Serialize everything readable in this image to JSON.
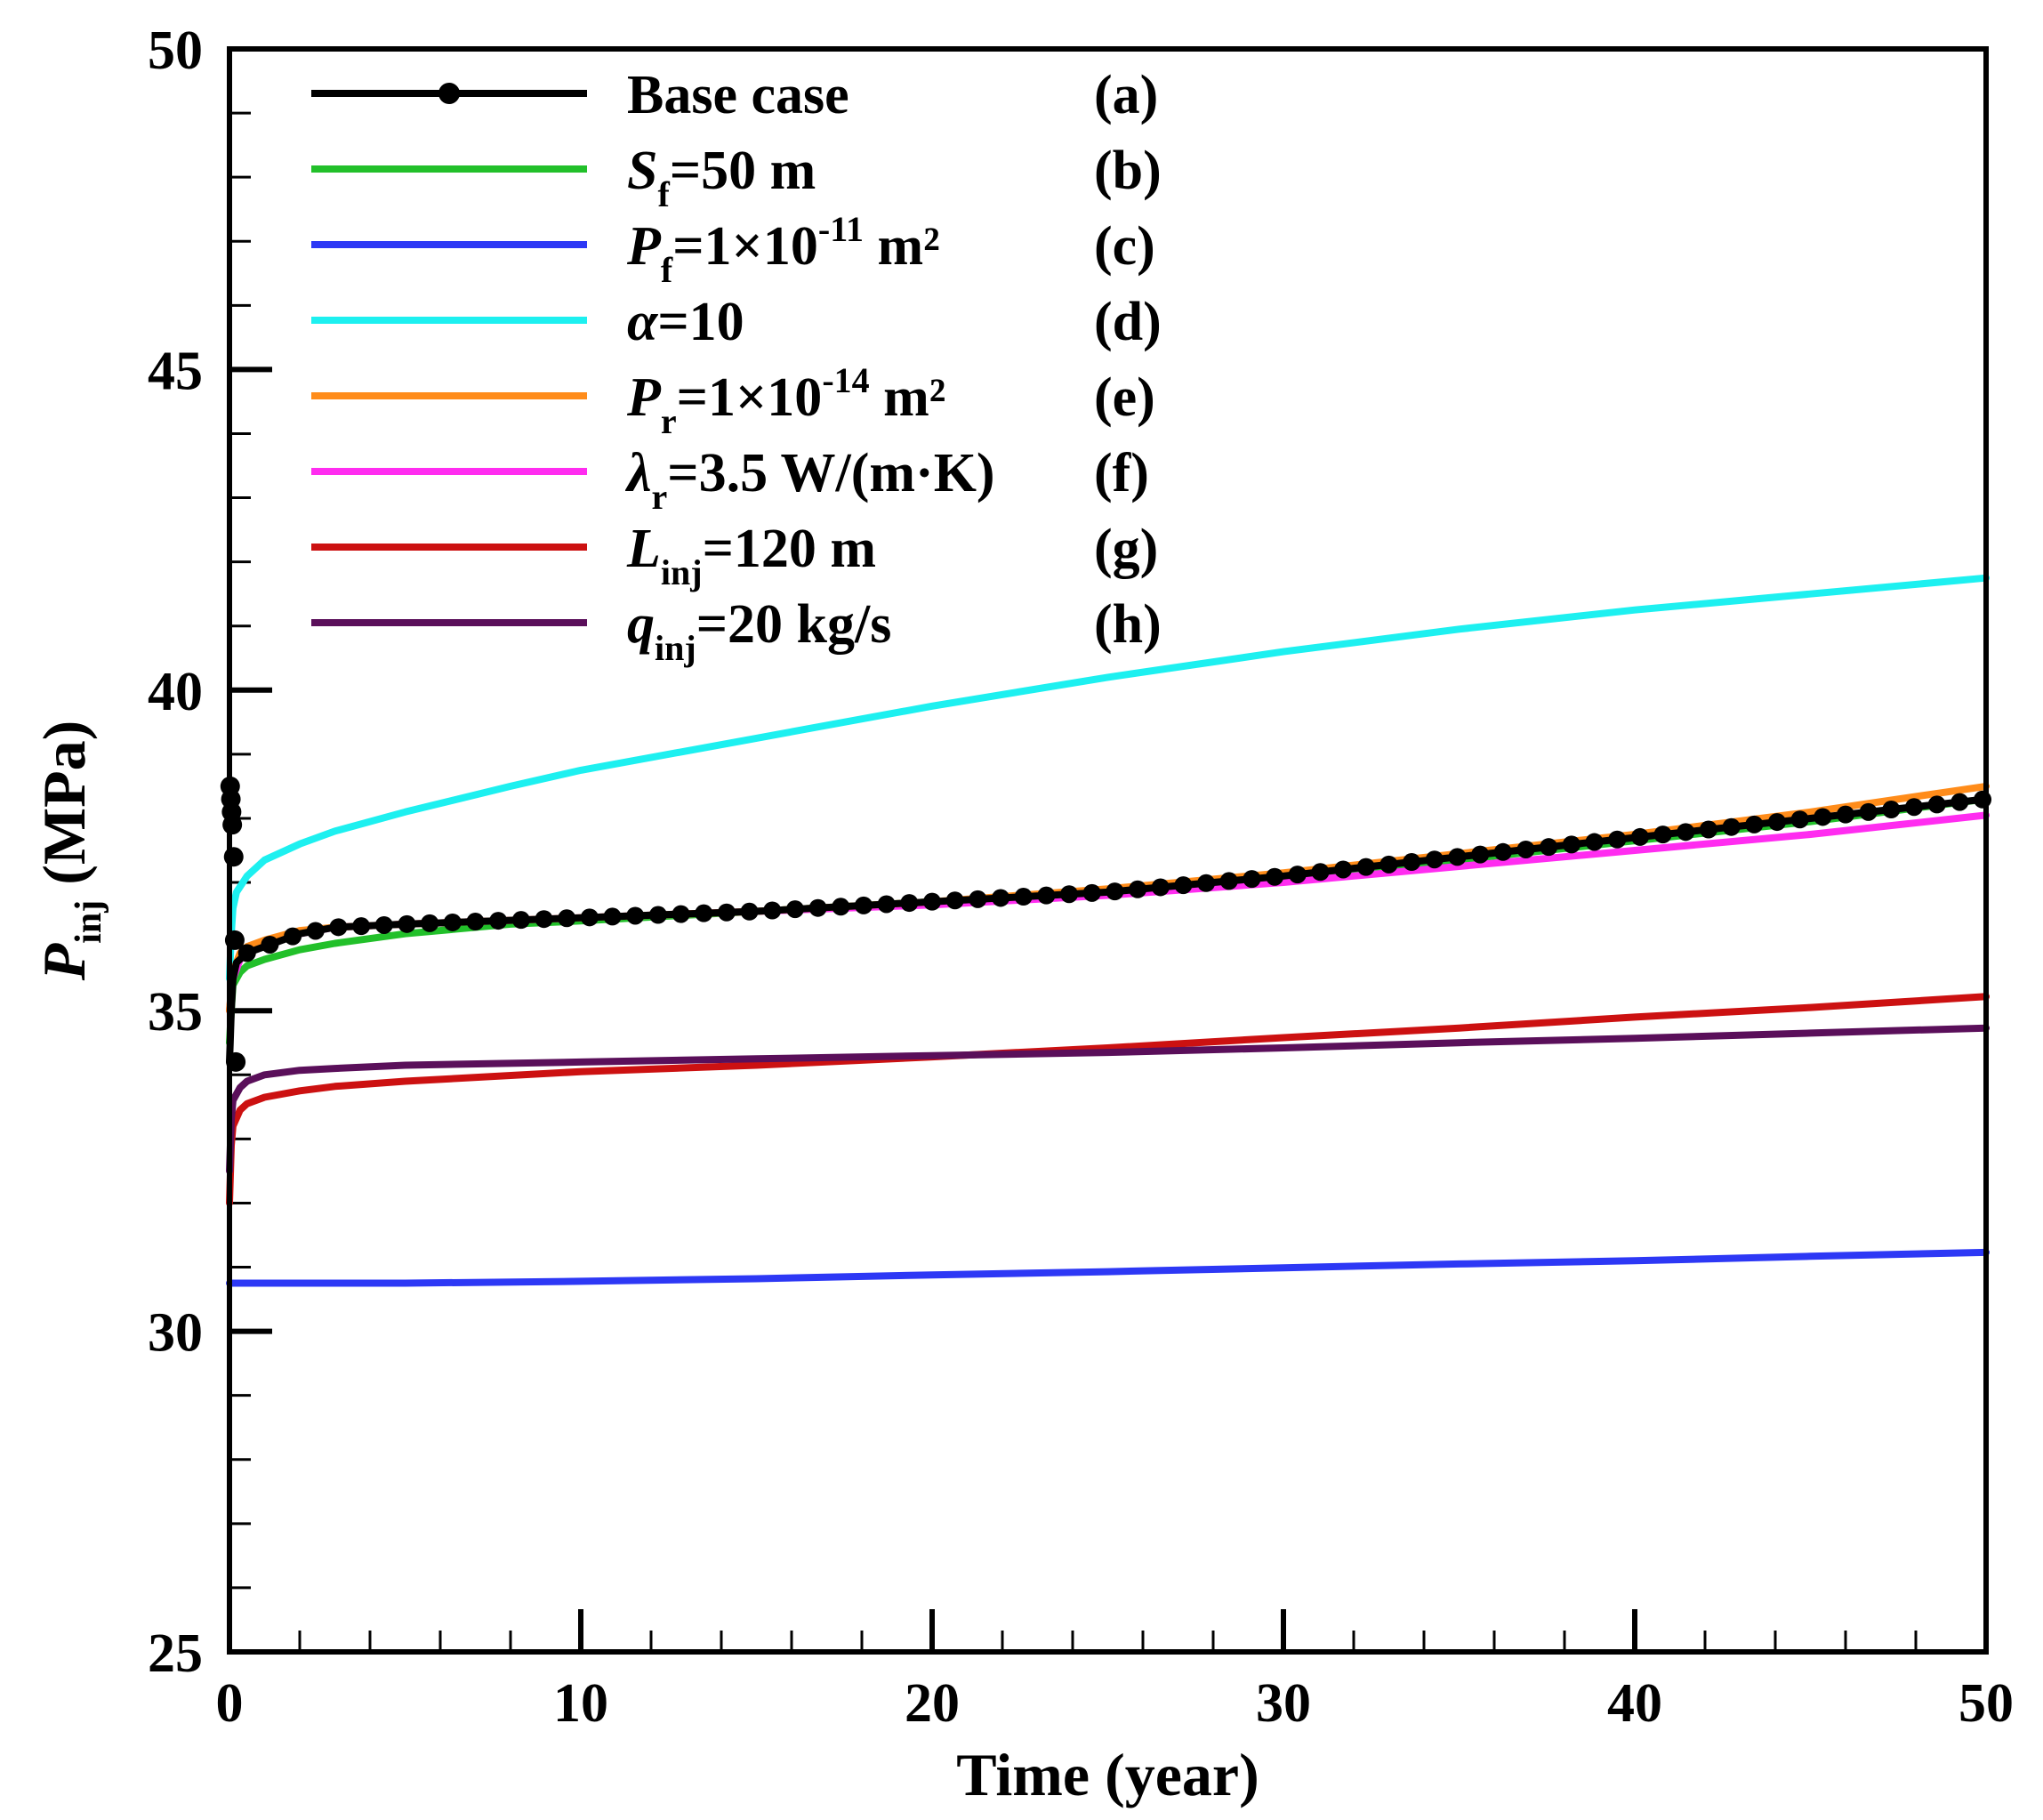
{
  "chart_data": {
    "type": "line",
    "xlabel": "Time (year)",
    "ylabel": {
      "main": "P",
      "sub": "inj",
      "rest": " (MPa)"
    },
    "xlim": [
      0,
      50
    ],
    "ylim": [
      25,
      50
    ],
    "x_ticks": [
      "0",
      "10",
      "20",
      "30",
      "40",
      "50"
    ],
    "y_ticks": [
      "25",
      "30",
      "35",
      "40",
      "45",
      "50"
    ],
    "x_minor_step": 2,
    "y_minor_step": 1,
    "series": [
      {
        "name": "Base case",
        "label": {
          "main": "Base case",
          "sub": "",
          "rest": ""
        },
        "tag": "(a)",
        "color": "#000000",
        "markers": true,
        "points": [
          [
            0,
            34.2
          ],
          [
            0.02,
            34.5
          ],
          [
            0.05,
            35.0
          ],
          [
            0.1,
            35.5
          ],
          [
            0.2,
            35.75
          ],
          [
            0.5,
            35.9
          ],
          [
            1,
            36.0
          ],
          [
            2,
            36.2
          ],
          [
            3,
            36.3
          ],
          [
            5,
            36.35
          ],
          [
            10,
            36.45
          ],
          [
            15,
            36.55
          ],
          [
            20,
            36.7
          ],
          [
            25,
            36.85
          ],
          [
            30,
            37.1
          ],
          [
            35,
            37.4
          ],
          [
            40,
            37.7
          ],
          [
            45,
            38.0
          ],
          [
            50,
            38.3
          ]
        ],
        "marker_points": [
          [
            0.02,
            38.5
          ],
          [
            0.04,
            38.3
          ],
          [
            0.06,
            38.1
          ],
          [
            0.08,
            37.9
          ],
          [
            0.12,
            37.4
          ],
          [
            0.15,
            36.1
          ],
          [
            0.18,
            34.2
          ]
        ]
      },
      {
        "name": "Sf=50 m",
        "label": {
          "main": "S",
          "sub": "f",
          "rest": "=50 m"
        },
        "tag": "(b)",
        "color": "#22c02a",
        "markers": false,
        "points": [
          [
            0,
            34.5
          ],
          [
            0.05,
            35.0
          ],
          [
            0.1,
            35.4
          ],
          [
            0.3,
            35.6
          ],
          [
            0.5,
            35.7
          ],
          [
            1,
            35.8
          ],
          [
            2,
            35.95
          ],
          [
            3,
            36.05
          ],
          [
            5,
            36.2
          ],
          [
            8,
            36.35
          ],
          [
            10,
            36.4
          ],
          [
            15,
            36.55
          ],
          [
            20,
            36.7
          ],
          [
            25,
            36.85
          ],
          [
            30,
            37.05
          ],
          [
            35,
            37.35
          ],
          [
            40,
            37.65
          ],
          [
            45,
            37.95
          ],
          [
            50,
            38.3
          ]
        ]
      },
      {
        "name": "Pf=1×10^-11 m²",
        "label": {
          "main": "P",
          "sub": "f",
          "rest": "=1×10",
          "sup": "-11",
          "rest2": " m²"
        },
        "tag": "(c)",
        "color": "#2d38f5",
        "markers": false,
        "points": [
          [
            0,
            30.75
          ],
          [
            5,
            30.75
          ],
          [
            10,
            30.78
          ],
          [
            15,
            30.82
          ],
          [
            20,
            30.88
          ],
          [
            25,
            30.93
          ],
          [
            30,
            30.99
          ],
          [
            35,
            31.05
          ],
          [
            40,
            31.1
          ],
          [
            45,
            31.17
          ],
          [
            50,
            31.23
          ]
        ]
      },
      {
        "name": "α=10",
        "label": {
          "main": "α",
          "sub": "",
          "rest": "=10"
        },
        "tag": "(d)",
        "color": "#1df0f0",
        "markers": false,
        "points": [
          [
            0,
            35.5
          ],
          [
            0.05,
            36.2
          ],
          [
            0.1,
            36.6
          ],
          [
            0.2,
            36.85
          ],
          [
            0.5,
            37.1
          ],
          [
            1,
            37.35
          ],
          [
            2,
            37.6
          ],
          [
            3,
            37.8
          ],
          [
            5,
            38.1
          ],
          [
            8,
            38.5
          ],
          [
            10,
            38.75
          ],
          [
            15,
            39.25
          ],
          [
            20,
            39.75
          ],
          [
            25,
            40.2
          ],
          [
            30,
            40.6
          ],
          [
            35,
            40.95
          ],
          [
            40,
            41.25
          ],
          [
            45,
            41.5
          ],
          [
            50,
            41.75
          ]
        ]
      },
      {
        "name": "Pr=1×10^-14 m²",
        "label": {
          "main": "P",
          "sub": "r",
          "rest": "=1×10",
          "sup": "-14",
          "rest2": " m²"
        },
        "tag": "(e)",
        "color": "#ff8c1a",
        "markers": false,
        "points": [
          [
            0,
            35.0
          ],
          [
            0.1,
            35.6
          ],
          [
            0.3,
            35.9
          ],
          [
            0.5,
            36.0
          ],
          [
            1,
            36.1
          ],
          [
            2,
            36.25
          ],
          [
            3,
            36.3
          ],
          [
            5,
            36.35
          ],
          [
            10,
            36.45
          ],
          [
            15,
            36.55
          ],
          [
            20,
            36.7
          ],
          [
            25,
            36.9
          ],
          [
            30,
            37.15
          ],
          [
            35,
            37.45
          ],
          [
            40,
            37.75
          ],
          [
            45,
            38.1
          ],
          [
            50,
            38.5
          ]
        ]
      },
      {
        "name": "λr=3.5 W/(m·K)",
        "label": {
          "main": "λ",
          "sub": "r",
          "rest": "=3.5 W/(m·K)"
        },
        "tag": "(f)",
        "color": "#ff2cf0",
        "markers": false,
        "points": [
          [
            0,
            35.0
          ],
          [
            0.1,
            35.5
          ],
          [
            0.3,
            35.8
          ],
          [
            0.5,
            35.95
          ],
          [
            1,
            36.05
          ],
          [
            2,
            36.2
          ],
          [
            3,
            36.3
          ],
          [
            5,
            36.35
          ],
          [
            10,
            36.45
          ],
          [
            15,
            36.55
          ],
          [
            20,
            36.65
          ],
          [
            25,
            36.8
          ],
          [
            30,
            37.0
          ],
          [
            35,
            37.25
          ],
          [
            40,
            37.5
          ],
          [
            45,
            37.75
          ],
          [
            50,
            38.05
          ]
        ]
      },
      {
        "name": "Linj=120 m",
        "label": {
          "main": "L",
          "sub": "inj",
          "rest": "=120 m"
        },
        "tag": "(g)",
        "color": "#cc1111",
        "markers": false,
        "points": [
          [
            0,
            32.0
          ],
          [
            0.05,
            32.9
          ],
          [
            0.1,
            33.2
          ],
          [
            0.3,
            33.45
          ],
          [
            0.5,
            33.55
          ],
          [
            1,
            33.65
          ],
          [
            2,
            33.75
          ],
          [
            3,
            33.82
          ],
          [
            5,
            33.9
          ],
          [
            10,
            34.05
          ],
          [
            15,
            34.15
          ],
          [
            20,
            34.28
          ],
          [
            25,
            34.42
          ],
          [
            30,
            34.58
          ],
          [
            35,
            34.73
          ],
          [
            40,
            34.9
          ],
          [
            45,
            35.05
          ],
          [
            50,
            35.22
          ]
        ]
      },
      {
        "name": "qinj=20 kg/s",
        "label": {
          "main": "q",
          "sub": "inj",
          "rest": "=20 kg/s"
        },
        "tag": "(h)",
        "color": "#5a0f5a",
        "markers": false,
        "points": [
          [
            0,
            32.5
          ],
          [
            0.05,
            33.3
          ],
          [
            0.1,
            33.6
          ],
          [
            0.3,
            33.8
          ],
          [
            0.5,
            33.9
          ],
          [
            1,
            34.0
          ],
          [
            2,
            34.07
          ],
          [
            3,
            34.1
          ],
          [
            5,
            34.15
          ],
          [
            10,
            34.2
          ],
          [
            15,
            34.25
          ],
          [
            20,
            34.3
          ],
          [
            25,
            34.35
          ],
          [
            30,
            34.42
          ],
          [
            35,
            34.5
          ],
          [
            40,
            34.57
          ],
          [
            45,
            34.65
          ],
          [
            50,
            34.73
          ]
        ]
      }
    ]
  }
}
